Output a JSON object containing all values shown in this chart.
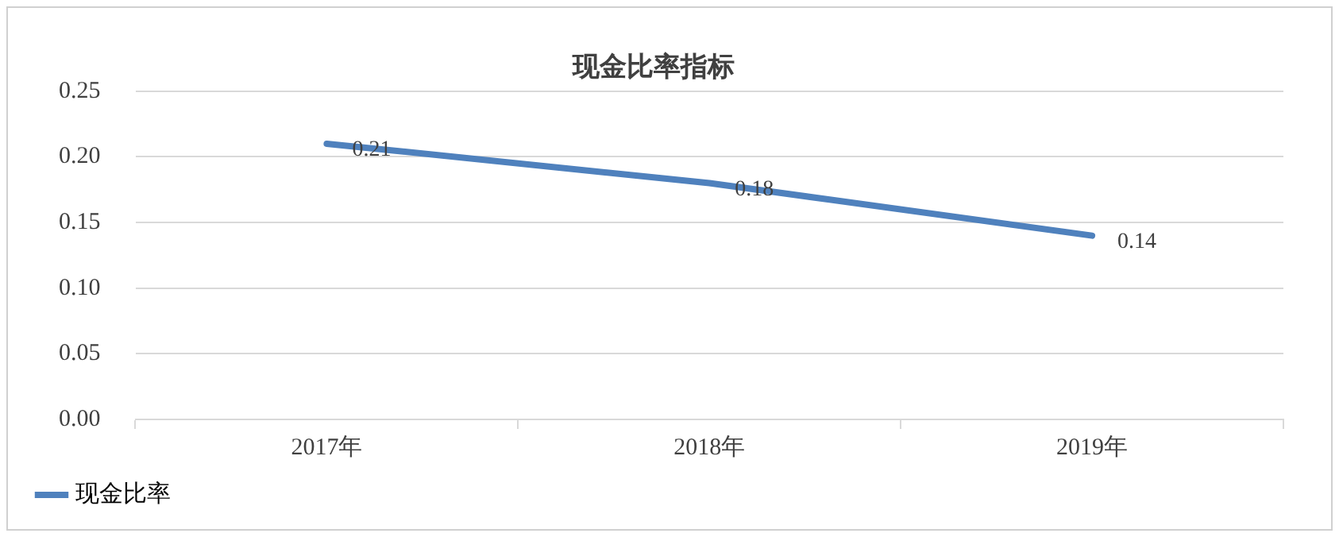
{
  "chart_data": {
    "type": "line",
    "title": "现金比率指标",
    "categories": [
      "2017年",
      "2018年",
      "2019年"
    ],
    "series": [
      {
        "name": "现金比率",
        "color": "#4f81bd",
        "values": [
          0.21,
          0.18,
          0.14
        ]
      }
    ],
    "ylim": [
      0,
      0.25
    ],
    "yticks": [
      {
        "value": 0,
        "label": "0.00"
      },
      {
        "value": 0.05,
        "label": "0.05"
      },
      {
        "value": 0.1,
        "label": "0.10"
      },
      {
        "value": 0.15,
        "label": "0.15"
      },
      {
        "value": 0.2,
        "label": "0.20"
      },
      {
        "value": 0.25,
        "label": "0.25"
      }
    ],
    "grid": "y",
    "legend": "bottom left",
    "marker": "none",
    "line_style": "solid",
    "data_labels": true
  }
}
